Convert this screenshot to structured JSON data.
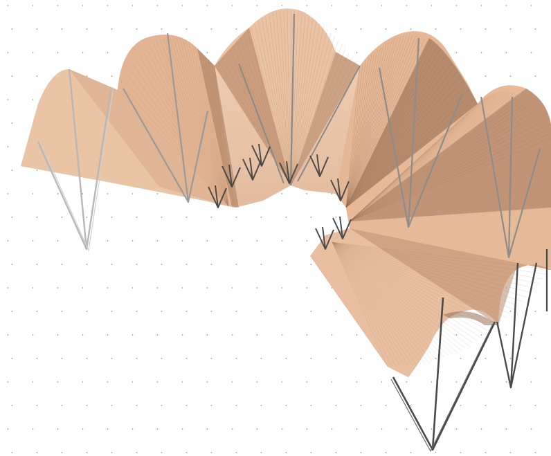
{
  "viewport": {
    "background": "#ffffff",
    "grid_dot_color": "#9a9a9a",
    "membrane_light": "#f1d1b5",
    "membrane_mid": "#e2b592",
    "membrane_dark": "#9a7257",
    "strut_near": "#4a4a4a",
    "strut_far": "#b8b8b8",
    "show_dot_grid": true
  },
  "model": {
    "type": "tensile-membrane-canopy",
    "cone_count": 9,
    "mast_clusters": 7
  }
}
